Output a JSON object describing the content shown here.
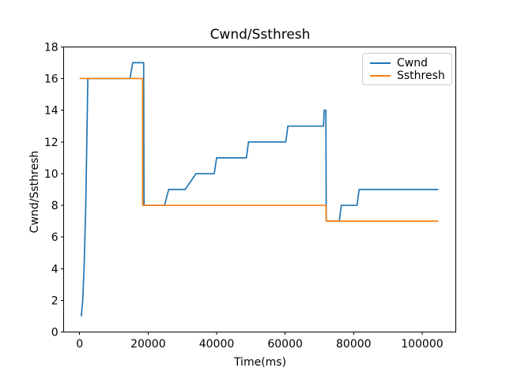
{
  "title": "Cwnd/Ssthresh",
  "chart_data": {
    "type": "line",
    "title": "Cwnd/Ssthresh",
    "xlabel": "Time(ms)",
    "ylabel": "Cwnd/Ssthresh",
    "xlim": [
      -4616,
      109870
    ],
    "ylim": [
      0,
      18
    ],
    "x_ticks": [
      0,
      20000,
      40000,
      60000,
      80000,
      100000
    ],
    "y_ticks": [
      0,
      2,
      4,
      6,
      8,
      10,
      12,
      14,
      16,
      18
    ],
    "grid": false,
    "legend_position": "upper right",
    "axis_color": "#000000",
    "series": [
      {
        "name": "Cwnd",
        "color": "#1f77b4",
        "points": [
          [
            500,
            1
          ],
          [
            900,
            2
          ],
          [
            1300,
            4
          ],
          [
            1800,
            8
          ],
          [
            2400,
            16
          ],
          [
            14700,
            16
          ],
          [
            15500,
            17
          ],
          [
            18700,
            17
          ],
          [
            18800,
            8
          ],
          [
            24800,
            8
          ],
          [
            26000,
            9
          ],
          [
            30800,
            9
          ],
          [
            34000,
            10
          ],
          [
            39300,
            10
          ],
          [
            40000,
            11
          ],
          [
            48700,
            11
          ],
          [
            49300,
            12
          ],
          [
            60200,
            12
          ],
          [
            60800,
            13
          ],
          [
            71200,
            13
          ],
          [
            71400,
            14
          ],
          [
            71900,
            14
          ],
          [
            72000,
            7
          ],
          [
            75800,
            7
          ],
          [
            76400,
            8
          ],
          [
            81000,
            8
          ],
          [
            81600,
            9
          ],
          [
            104700,
            9
          ]
        ]
      },
      {
        "name": "Ssthresh",
        "color": "#ff7f0e",
        "points": [
          [
            0,
            16
          ],
          [
            18400,
            16
          ],
          [
            18400,
            8
          ],
          [
            71900,
            8
          ],
          [
            72000,
            7
          ],
          [
            104700,
            7
          ]
        ]
      }
    ]
  }
}
